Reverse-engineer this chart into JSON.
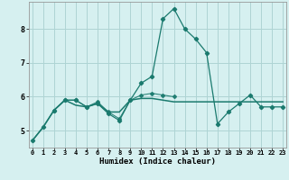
{
  "xlabel": "Humidex (Indice chaleur)",
  "x": [
    0,
    1,
    2,
    3,
    4,
    5,
    6,
    7,
    8,
    9,
    10,
    11,
    12,
    13,
    14,
    15,
    16,
    17,
    18,
    19,
    20,
    21,
    22,
    23
  ],
  "line1": [
    4.7,
    5.1,
    5.6,
    5.9,
    5.9,
    5.7,
    5.8,
    5.5,
    5.3,
    5.9,
    6.4,
    6.6,
    8.3,
    8.6,
    8.0,
    7.7,
    7.3,
    5.2,
    5.55,
    5.8,
    6.05,
    5.7,
    5.7,
    5.7
  ],
  "line2": [
    4.7,
    5.1,
    5.6,
    5.9,
    5.75,
    5.7,
    5.8,
    5.55,
    5.55,
    5.9,
    5.95,
    5.95,
    5.9,
    5.85,
    5.85,
    5.85,
    5.85,
    5.85,
    5.85,
    5.85,
    5.85,
    5.85,
    5.85,
    5.85
  ],
  "line3": [
    null,
    null,
    5.6,
    5.9,
    5.9,
    5.7,
    5.85,
    5.55,
    5.35,
    5.9,
    6.05,
    6.1,
    6.05,
    6.0,
    null,
    null,
    null,
    null,
    null,
    null,
    null,
    null,
    null,
    null
  ],
  "line_color": "#1a7a6e",
  "bg_color": "#d6f0f0",
  "grid_color": "#aed4d4",
  "ylim": [
    4.5,
    8.8
  ],
  "xlim": [
    -0.3,
    23.3
  ],
  "yticks": [
    5,
    6,
    7,
    8
  ],
  "xticks": [
    0,
    1,
    2,
    3,
    4,
    5,
    6,
    7,
    8,
    9,
    10,
    11,
    12,
    13,
    14,
    15,
    16,
    17,
    18,
    19,
    20,
    21,
    22,
    23
  ]
}
